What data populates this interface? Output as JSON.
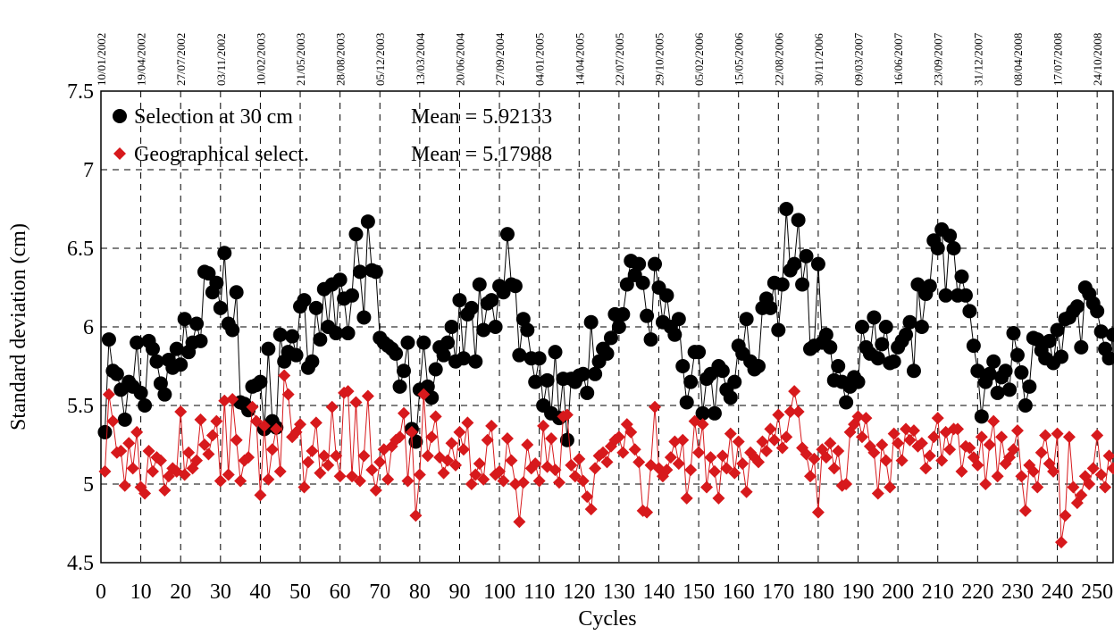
{
  "chart_data": {
    "type": "line",
    "ylabel": "Standard deviation (cm)",
    "xlabel": "Cycles",
    "legend": "upper left",
    "grid": true,
    "xlim": [
      0,
      254
    ],
    "ylim": [
      4.5,
      7.5
    ],
    "xticks": [
      0,
      10,
      20,
      30,
      40,
      50,
      60,
      70,
      80,
      90,
      100,
      110,
      120,
      130,
      140,
      150,
      160,
      170,
      180,
      190,
      200,
      210,
      220,
      230,
      240,
      250
    ],
    "yticks": [
      4.5,
      5,
      5.5,
      6,
      6.5,
      7,
      7.5
    ],
    "top_labels": [
      "10/01/2002",
      "19/04/2002",
      "27/07/2002",
      "03/11/2002",
      "10/02/2003",
      "21/05/2003",
      "28/08/2003",
      "05/12/2003",
      "13/03/2004",
      "20/06/2004",
      "27/09/2004",
      "04/01/2005",
      "14/04/2005",
      "22/07/2005",
      "29/10/2005",
      "05/02/2006",
      "15/05/2006",
      "22/08/2006",
      "30/11/2006",
      "09/03/2007",
      "16/06/2007",
      "23/09/2007",
      "31/12/2007",
      "08/04/2008",
      "17/07/2008",
      "24/10/2008"
    ],
    "x": [
      1,
      2,
      3,
      4,
      5,
      6,
      7,
      8,
      9,
      10,
      11,
      12,
      13,
      14,
      15,
      16,
      17,
      18,
      19,
      20,
      21,
      22,
      23,
      24,
      25,
      26,
      27,
      28,
      29,
      30,
      31,
      32,
      33,
      34,
      35,
      36,
      37,
      38,
      39,
      40,
      41,
      42,
      43,
      44,
      45,
      46,
      47,
      48,
      49,
      50,
      51,
      52,
      53,
      54,
      55,
      56,
      57,
      58,
      59,
      60,
      61,
      62,
      63,
      64,
      65,
      66,
      67,
      68,
      69,
      70,
      71,
      72,
      73,
      74,
      75,
      76,
      77,
      78,
      79,
      80,
      81,
      82,
      83,
      84,
      85,
      86,
      87,
      88,
      89,
      90,
      91,
      92,
      93,
      94,
      95,
      96,
      97,
      98,
      99,
      100,
      101,
      102,
      103,
      104,
      105,
      106,
      107,
      108,
      109,
      110,
      111,
      112,
      113,
      114,
      115,
      116,
      117,
      118,
      119,
      120,
      121,
      122,
      123,
      124,
      125,
      126,
      127,
      128,
      129,
      130,
      131,
      132,
      133,
      134,
      135,
      136,
      137,
      138,
      139,
      140,
      141,
      142,
      143,
      144,
      145,
      146,
      147,
      148,
      149,
      150,
      151,
      152,
      153,
      154,
      155,
      156,
      157,
      158,
      159,
      160,
      161,
      162,
      163,
      164,
      165,
      166,
      167,
      168,
      169,
      170,
      171,
      172,
      173,
      174,
      175,
      176,
      177,
      178,
      179,
      180,
      181,
      182,
      183,
      184,
      185,
      186,
      187,
      188,
      189,
      190,
      191,
      192,
      193,
      194,
      195,
      196,
      197,
      198,
      199,
      200,
      201,
      202,
      203,
      204,
      205,
      206,
      207,
      208,
      209,
      210,
      211,
      212,
      213,
      214,
      215,
      216,
      217,
      218,
      219,
      220,
      221,
      222,
      223,
      224,
      225,
      226,
      227,
      228,
      229,
      230,
      231,
      232,
      233,
      234,
      235,
      236,
      237,
      238,
      239,
      240,
      241,
      242,
      243,
      244,
      245,
      246,
      247,
      248,
      249,
      250,
      251,
      252,
      253,
      254
    ],
    "series": [
      {
        "name": "Selection at 30 cm",
        "mean_label": "Mean = 5.92133",
        "color": "#000000",
        "marker": "circle",
        "values": [
          5.33,
          5.92,
          5.72,
          5.7,
          5.6,
          5.41,
          5.65,
          5.62,
          5.9,
          5.58,
          5.5,
          5.91,
          5.86,
          5.78,
          5.64,
          5.57,
          5.79,
          5.74,
          5.86,
          5.76,
          6.05,
          5.84,
          5.9,
          6.02,
          5.91,
          6.35,
          6.34,
          6.22,
          6.28,
          6.12,
          6.47,
          6.02,
          5.98,
          6.22,
          5.52,
          5.51,
          5.47,
          5.62,
          5.63,
          5.65,
          5.35,
          5.86,
          5.4,
          5.36,
          5.95,
          5.78,
          5.84,
          5.94,
          5.82,
          6.13,
          6.17,
          5.74,
          5.78,
          6.12,
          5.92,
          6.24,
          6.0,
          6.27,
          5.96,
          6.3,
          6.18,
          5.96,
          6.2,
          6.59,
          6.35,
          6.06,
          6.67,
          6.36,
          6.35,
          5.93,
          5.9,
          5.88,
          5.86,
          5.83,
          5.62,
          5.72,
          5.9,
          5.35,
          5.27,
          5.6,
          5.9,
          5.62,
          5.55,
          5.73,
          5.87,
          5.82,
          5.9,
          6.0,
          5.78,
          6.17,
          5.8,
          6.08,
          6.12,
          5.78,
          6.27,
          5.98,
          6.15,
          6.17,
          6.0,
          6.26,
          6.22,
          6.59,
          6.27,
          6.26,
          5.82,
          6.05,
          5.98,
          5.8,
          5.65,
          5.8,
          5.5,
          5.66,
          5.45,
          5.84,
          5.42,
          5.67,
          5.28,
          5.67,
          5.65,
          5.69,
          5.7,
          5.58,
          6.03,
          5.7,
          5.78,
          5.86,
          5.83,
          5.93,
          6.08,
          6.0,
          6.08,
          6.27,
          6.42,
          6.33,
          6.4,
          6.28,
          6.07,
          5.92,
          6.4,
          6.25,
          6.03,
          6.2,
          6.0,
          5.95,
          6.05,
          5.75,
          5.52,
          5.65,
          5.84,
          5.84,
          5.45,
          5.67,
          5.7,
          5.45,
          5.75,
          5.72,
          5.6,
          5.55,
          5.65,
          5.88,
          5.83,
          6.05,
          5.78,
          5.73,
          5.75,
          6.12,
          6.18,
          6.12,
          6.28,
          5.98,
          6.27,
          6.75,
          6.36,
          6.4,
          6.68,
          6.27,
          6.45,
          5.86,
          5.88,
          6.4,
          5.9,
          5.95,
          5.87,
          5.66,
          5.75,
          5.65,
          5.52,
          5.62,
          5.68,
          5.65,
          6.0,
          5.87,
          5.83,
          6.06,
          5.8,
          5.89,
          6.0,
          5.77,
          5.78,
          5.87,
          5.91,
          5.95,
          6.03,
          5.72,
          6.27,
          6.0,
          6.21,
          6.26,
          6.55,
          6.5,
          6.62,
          6.2,
          6.58,
          6.5,
          6.2,
          6.32,
          6.2,
          6.1,
          5.88,
          5.72,
          5.43,
          5.65,
          5.7,
          5.78,
          5.58,
          5.68,
          5.72,
          5.6,
          5.96,
          5.82,
          5.71,
          5.5,
          5.62,
          5.93,
          5.92,
          5.85,
          5.8,
          5.91,
          5.77,
          5.98,
          5.81,
          6.05,
          6.06,
          6.1,
          6.13,
          5.87,
          6.25,
          6.21,
          6.15,
          6.1,
          5.97,
          5.86,
          5.8,
          5.95
        ]
      },
      {
        "name": "Geographical select.",
        "mean_label": "Mean = 5.17988",
        "color": "#d7191c",
        "marker": "diamond",
        "values": [
          5.08,
          5.57,
          5.4,
          5.2,
          5.21,
          4.99,
          5.26,
          5.1,
          5.33,
          4.98,
          4.94,
          5.21,
          5.08,
          5.17,
          5.15,
          4.96,
          5.05,
          5.1,
          5.08,
          5.46,
          5.06,
          5.2,
          5.1,
          5.15,
          5.41,
          5.25,
          5.19,
          5.31,
          5.4,
          5.02,
          5.53,
          5.06,
          5.54,
          5.28,
          5.02,
          5.15,
          5.17,
          5.49,
          5.4,
          4.93,
          5.37,
          5.03,
          5.22,
          5.35,
          5.08,
          5.69,
          5.57,
          5.3,
          5.33,
          5.38,
          4.98,
          5.14,
          5.21,
          5.39,
          5.07,
          5.18,
          5.12,
          5.49,
          5.18,
          5.05,
          5.58,
          5.59,
          5.05,
          5.52,
          5.02,
          5.18,
          5.56,
          5.09,
          4.96,
          5.14,
          5.22,
          5.03,
          5.24,
          5.28,
          5.3,
          5.45,
          5.02,
          5.33,
          4.8,
          5.06,
          5.57,
          5.18,
          5.3,
          5.43,
          5.17,
          5.07,
          5.15,
          5.26,
          5.12,
          5.33,
          5.22,
          5.39,
          5.0,
          5.06,
          5.13,
          5.03,
          5.28,
          5.37,
          5.06,
          5.08,
          5.02,
          5.29,
          5.15,
          5.0,
          4.76,
          5.01,
          5.25,
          5.1,
          5.13,
          5.02,
          5.37,
          5.11,
          5.29,
          5.09,
          5.01,
          5.43,
          5.44,
          5.12,
          5.05,
          5.16,
          5.02,
          4.92,
          4.84,
          5.1,
          5.18,
          5.2,
          5.14,
          5.24,
          5.28,
          5.3,
          5.2,
          5.38,
          5.33,
          5.22,
          5.14,
          4.83,
          4.82,
          5.12,
          5.49,
          5.1,
          5.05,
          5.09,
          5.17,
          5.27,
          5.13,
          5.28,
          4.91,
          5.09,
          5.4,
          5.2,
          5.38,
          4.98,
          5.17,
          5.08,
          4.91,
          5.18,
          5.1,
          5.32,
          5.07,
          5.27,
          5.13,
          4.95,
          5.2,
          5.17,
          5.14,
          5.27,
          5.21,
          5.35,
          5.28,
          5.44,
          5.23,
          5.3,
          5.46,
          5.59,
          5.46,
          5.23,
          5.19,
          5.05,
          5.16,
          4.82,
          5.22,
          5.17,
          5.26,
          5.1,
          5.21,
          4.99,
          5.0,
          5.33,
          5.38,
          5.43,
          5.3,
          5.42,
          5.24,
          5.2,
          4.94,
          5.25,
          5.15,
          4.98,
          5.32,
          5.26,
          5.15,
          5.35,
          5.28,
          5.34,
          5.24,
          5.26,
          5.1,
          5.18,
          5.3,
          5.42,
          5.15,
          5.33,
          5.22,
          5.35,
          5.35,
          5.08,
          5.24,
          5.23,
          5.17,
          5.12,
          5.3,
          5.0,
          5.25,
          5.4,
          5.05,
          5.3,
          5.13,
          5.17,
          5.22,
          5.34,
          5.05,
          4.83,
          5.12,
          5.08,
          4.98,
          5.2,
          5.31,
          5.13,
          5.08,
          5.32,
          4.63,
          4.8,
          5.3,
          4.98,
          4.88,
          4.93,
          5.05,
          5.0,
          5.1,
          5.31,
          5.06,
          4.98,
          5.18,
          5.1
        ]
      }
    ]
  }
}
